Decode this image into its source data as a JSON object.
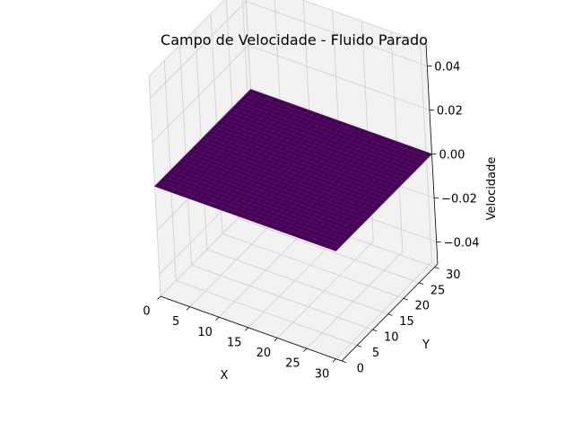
{
  "chart_data": {
    "type": "surface3d",
    "title": "Campo de Velocidade - Fluido Parado",
    "xlabel": "X",
    "ylabel": "Y",
    "zlabel": "Velocidade",
    "x_ticks": [
      "0",
      "5",
      "10",
      "15",
      "20",
      "25",
      "30"
    ],
    "y_ticks": [
      "0",
      "5",
      "10",
      "15",
      "20",
      "25",
      "30"
    ],
    "z_ticks": [
      "−0.04",
      "−0.02",
      "0.00",
      "0.02",
      "0.04"
    ],
    "x_range": [
      0,
      31
    ],
    "y_range": [
      0,
      31
    ],
    "z_range": [
      -0.05,
      0.05
    ],
    "surface": {
      "grid_points": 32,
      "z_value": 0.0,
      "colormap": "viridis",
      "face_color": "#440154",
      "edge_color": "#7a2a8c"
    },
    "pane_color": "#f2f2f2",
    "grid": true
  }
}
